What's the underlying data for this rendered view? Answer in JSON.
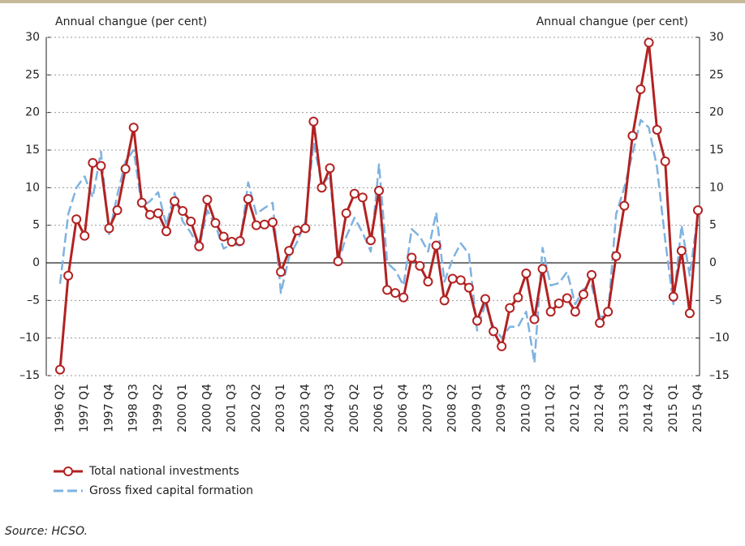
{
  "chart_data": {
    "type": "line",
    "y_label": "Annual changue (per cent)",
    "y2_label": "Annual changue (per cent)",
    "source": "Source: HCSO.",
    "categories": [
      "1996 Q2",
      null,
      null,
      "1997 Q1",
      null,
      null,
      "1997 Q4",
      null,
      null,
      "1998 Q3",
      null,
      null,
      "1999 Q2",
      null,
      null,
      "2000 Q1",
      null,
      null,
      "2000 Q4",
      null,
      null,
      "2001 Q3",
      null,
      null,
      "2002 Q2",
      null,
      null,
      "2003 Q1",
      null,
      null,
      "2003 Q4",
      null,
      null,
      "2004 Q3",
      null,
      null,
      "2005 Q2",
      null,
      null,
      "2006 Q1",
      null,
      null,
      "2006 Q4",
      null,
      null,
      "2007 Q3",
      null,
      null,
      "2008 Q2",
      null,
      null,
      "2009 Q1",
      null,
      null,
      "2009 Q4",
      null,
      null,
      "2010 Q3",
      null,
      null,
      "2011 Q2",
      null,
      null,
      "2012 Q1",
      null,
      null,
      "2012 Q4",
      null,
      null,
      "2013 Q3",
      null,
      null,
      "2014 Q2",
      null,
      null,
      "2015 Q1",
      null,
      null,
      "2015 Q4"
    ],
    "series": [
      {
        "name": "Total national investments",
        "color": "#b22222",
        "style": "solid",
        "markers": true,
        "values": [
          -14.2,
          -1.7,
          5.8,
          3.6,
          13.3,
          12.9,
          4.6,
          7.0,
          12.5,
          18.0,
          8.0,
          6.4,
          6.6,
          4.2,
          8.2,
          6.9,
          5.5,
          2.2,
          8.4,
          5.3,
          3.5,
          2.8,
          2.9,
          8.5,
          5.0,
          5.1,
          5.4,
          -1.2,
          1.6,
          4.3,
          4.6,
          18.8,
          10.0,
          12.6,
          0.2,
          6.6,
          9.2,
          8.7,
          3.0,
          9.6,
          -3.6,
          -4.0,
          -4.6,
          0.7,
          -0.4,
          -2.5,
          2.3,
          -5.0,
          -2.1,
          -2.3,
          -3.3,
          -7.7,
          -4.8,
          -9.1,
          -11.1,
          -6.0,
          -4.6,
          -1.4,
          -7.5,
          -0.8,
          -6.5,
          -5.4,
          -4.7,
          -6.5,
          -4.2,
          -1.6,
          -8.0,
          -6.5,
          0.9,
          7.6,
          16.9,
          23.1,
          29.3,
          17.7,
          13.5,
          -4.5,
          1.6,
          -6.7,
          7.0
        ]
      },
      {
        "name": "Gross fixed capital formation",
        "color": "#7fb2e0",
        "style": "dashed",
        "markers": false,
        "values": [
          -2.8,
          6.5,
          10,
          11.5,
          8.7,
          14.8,
          3.8,
          9,
          13.5,
          15,
          7.5,
          8.2,
          9.4,
          5,
          9.3,
          5.5,
          4,
          2,
          7,
          5,
          1.9,
          2.5,
          2.3,
          10.7,
          6.5,
          7.3,
          8,
          -4,
          0.8,
          2.8,
          5.5,
          16,
          10.5,
          11.5,
          0,
          3.5,
          6,
          4,
          1.5,
          13.1,
          0,
          -1,
          -3,
          4.5,
          3.5,
          1.5,
          6.7,
          -2.5,
          0.5,
          2.6,
          1.2,
          -9,
          -5.5,
          -8.5,
          -10,
          -8.5,
          -8.5,
          -6.5,
          -13.3,
          2,
          -3,
          -2.7,
          -1.2,
          -5.5,
          -3.5,
          -3,
          -7.2,
          -7,
          6.5,
          10,
          14.5,
          19,
          18,
          12.7,
          3,
          -5.5,
          5,
          -1.7,
          6.5
        ]
      }
    ],
    "ylim": [
      -15,
      30
    ],
    "yticks": [
      30,
      25,
      20,
      15,
      10,
      5,
      0,
      {
        "value": -5,
        "label": "–5"
      },
      {
        "value": -10,
        "label": "–10"
      },
      {
        "value": -15,
        "label": "–15"
      }
    ],
    "y2lim": [
      -15,
      30
    ],
    "y2ticks": [
      30,
      25,
      20,
      15,
      10,
      5,
      0,
      {
        "value": -5,
        "label": "–5"
      },
      {
        "value": -10,
        "label": "–10"
      },
      {
        "value": -15,
        "label": "–15"
      }
    ],
    "grid": true,
    "legend": "bottom-left"
  }
}
